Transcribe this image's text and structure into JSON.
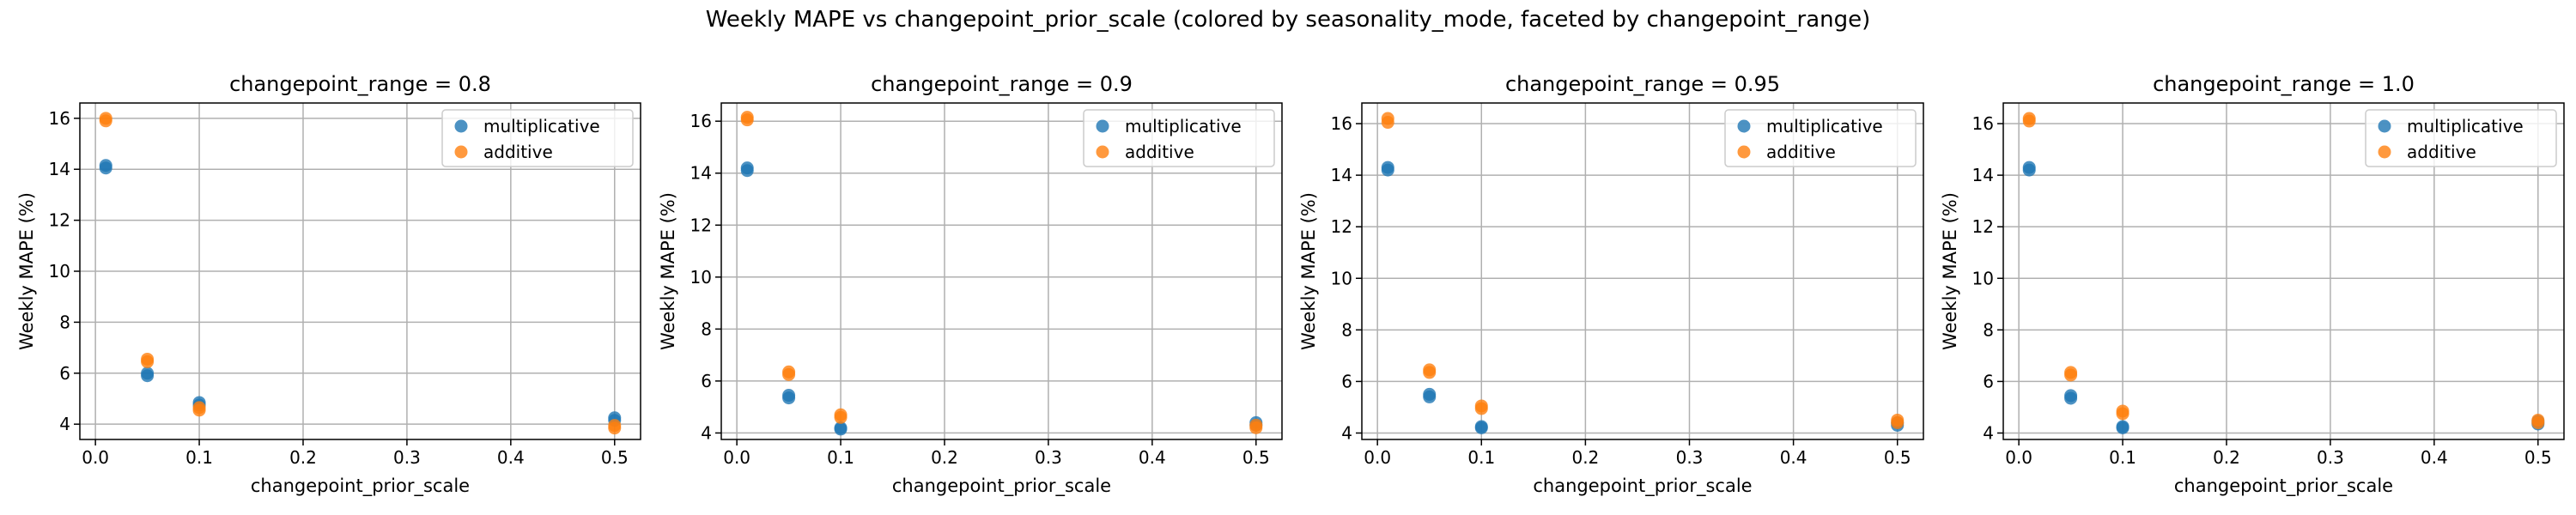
{
  "suptitle": "Weekly MAPE vs changepoint_prior_scale (colored by seasonality_mode, faceted by changepoint_range)",
  "colors": {
    "multiplicative": "#1f77b4",
    "additive": "#ff7f0e",
    "grid": "#b0b0b0"
  },
  "chart_data": [
    {
      "type": "scatter",
      "title": "changepoint_range = 0.8",
      "xlabel": "changepoint_prior_scale",
      "ylabel": "Weekly MAPE (%)",
      "xlim": [
        -0.015,
        0.525
      ],
      "ylim": [
        3.4,
        16.6
      ],
      "xticks": [
        0.0,
        0.1,
        0.2,
        0.3,
        0.4,
        0.5
      ],
      "xtick_labels": [
        "0.0",
        "0.1",
        "0.2",
        "0.3",
        "0.4",
        "0.5"
      ],
      "yticks": [
        4,
        6,
        8,
        10,
        12,
        14,
        16
      ],
      "ytick_labels": [
        "4",
        "6",
        "8",
        "10",
        "12",
        "14",
        "16"
      ],
      "legend": "top-right",
      "series": [
        {
          "name": "multiplicative",
          "x": [
            0.01,
            0.01,
            0.05,
            0.05,
            0.1,
            0.1,
            0.5,
            0.5
          ],
          "y": [
            14.05,
            14.15,
            5.9,
            6.0,
            4.75,
            4.85,
            4.15,
            4.25
          ]
        },
        {
          "name": "additive",
          "x": [
            0.01,
            0.01,
            0.05,
            0.05,
            0.1,
            0.1,
            0.5,
            0.5
          ],
          "y": [
            15.9,
            16.0,
            6.45,
            6.55,
            4.55,
            4.65,
            3.85,
            3.95
          ]
        }
      ]
    },
    {
      "type": "scatter",
      "title": "changepoint_range = 0.9",
      "xlabel": "changepoint_prior_scale",
      "ylabel": "Weekly MAPE (%)",
      "xlim": [
        -0.015,
        0.525
      ],
      "ylim": [
        3.75,
        16.7
      ],
      "xticks": [
        0.0,
        0.1,
        0.2,
        0.3,
        0.4,
        0.5
      ],
      "xtick_labels": [
        "0.0",
        "0.1",
        "0.2",
        "0.3",
        "0.4",
        "0.5"
      ],
      "yticks": [
        4,
        6,
        8,
        10,
        12,
        14,
        16
      ],
      "ytick_labels": [
        "4",
        "6",
        "8",
        "10",
        "12",
        "14",
        "16"
      ],
      "legend": "top-right",
      "series": [
        {
          "name": "multiplicative",
          "x": [
            0.01,
            0.01,
            0.05,
            0.05,
            0.1,
            0.1,
            0.5,
            0.5
          ],
          "y": [
            14.1,
            14.2,
            5.35,
            5.45,
            4.15,
            4.2,
            4.3,
            4.4
          ]
        },
        {
          "name": "additive",
          "x": [
            0.01,
            0.01,
            0.05,
            0.05,
            0.1,
            0.1,
            0.5,
            0.5
          ],
          "y": [
            16.05,
            16.15,
            6.25,
            6.35,
            4.6,
            4.7,
            4.2,
            4.3
          ]
        }
      ]
    },
    {
      "type": "scatter",
      "title": "changepoint_range = 0.95",
      "xlabel": "changepoint_prior_scale",
      "ylabel": "Weekly MAPE (%)",
      "xlim": [
        -0.015,
        0.525
      ],
      "ylim": [
        3.75,
        16.8
      ],
      "xticks": [
        0.0,
        0.1,
        0.2,
        0.3,
        0.4,
        0.5
      ],
      "xtick_labels": [
        "0.0",
        "0.1",
        "0.2",
        "0.3",
        "0.4",
        "0.5"
      ],
      "yticks": [
        4,
        6,
        8,
        10,
        12,
        14,
        16
      ],
      "ytick_labels": [
        "4",
        "6",
        "8",
        "10",
        "12",
        "14",
        "16"
      ],
      "legend": "top-right",
      "series": [
        {
          "name": "multiplicative",
          "x": [
            0.01,
            0.01,
            0.05,
            0.05,
            0.1,
            0.1,
            0.5,
            0.5
          ],
          "y": [
            14.2,
            14.3,
            5.4,
            5.5,
            4.2,
            4.25,
            4.3,
            4.4
          ]
        },
        {
          "name": "additive",
          "x": [
            0.01,
            0.01,
            0.05,
            0.05,
            0.1,
            0.1,
            0.5,
            0.5
          ],
          "y": [
            16.05,
            16.2,
            6.35,
            6.45,
            4.95,
            5.05,
            4.4,
            4.5
          ]
        }
      ]
    },
    {
      "type": "scatter",
      "title": "changepoint_range = 1.0",
      "xlabel": "changepoint_prior_scale",
      "ylabel": "Weekly MAPE (%)",
      "xlim": [
        -0.015,
        0.525
      ],
      "ylim": [
        3.75,
        16.8
      ],
      "xticks": [
        0.0,
        0.1,
        0.2,
        0.3,
        0.4,
        0.5
      ],
      "xtick_labels": [
        "0.0",
        "0.1",
        "0.2",
        "0.3",
        "0.4",
        "0.5"
      ],
      "yticks": [
        4,
        6,
        8,
        10,
        12,
        14,
        16
      ],
      "ytick_labels": [
        "4",
        "6",
        "8",
        "10",
        "12",
        "14",
        "16"
      ],
      "legend": "top-right",
      "series": [
        {
          "name": "multiplicative",
          "x": [
            0.01,
            0.01,
            0.05,
            0.05,
            0.1,
            0.1,
            0.5,
            0.5
          ],
          "y": [
            14.2,
            14.3,
            5.35,
            5.45,
            4.2,
            4.25,
            4.35,
            4.45
          ]
        },
        {
          "name": "additive",
          "x": [
            0.01,
            0.01,
            0.05,
            0.05,
            0.1,
            0.1,
            0.5,
            0.5
          ],
          "y": [
            16.1,
            16.2,
            6.25,
            6.35,
            4.75,
            4.85,
            4.4,
            4.5
          ]
        }
      ]
    }
  ]
}
